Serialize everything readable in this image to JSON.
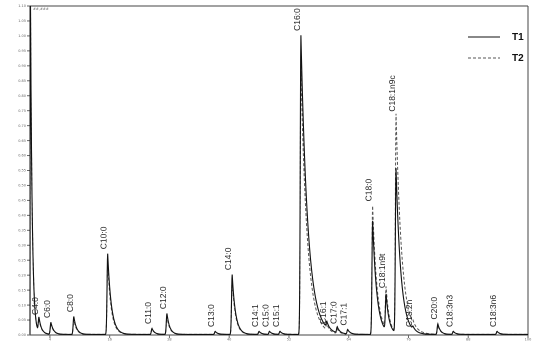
{
  "chart_data": {
    "type": "line",
    "title": "",
    "xlabel": "",
    "ylabel": "",
    "grid": false,
    "legend_position": "top-right",
    "colors": {
      "T1": "#111111",
      "T2": "#555555",
      "axis": "#444444"
    },
    "xlim": [
      0,
      100
    ],
    "ylim": [
      0,
      1.1
    ],
    "y_ticks": [
      0,
      0.05,
      0.1,
      0.15,
      0.2,
      0.25,
      0.3,
      0.35,
      0.4,
      0.45,
      0.5,
      0.55,
      0.6,
      0.65,
      0.7,
      0.75,
      0.8,
      0.85,
      0.9,
      0.95,
      1.0,
      1.05,
      1.1
    ],
    "x_ticks": [
      4,
      16,
      28,
      40,
      52,
      64,
      76,
      88,
      100
    ],
    "y_axis_top_label": "##,###",
    "series": [
      {
        "name": "T1",
        "style": "solid"
      },
      {
        "name": "T2",
        "style": "dashed"
      }
    ],
    "peaks": [
      {
        "label": "C4:0",
        "x": 1.8,
        "t1": 0.05,
        "t2": 0.045
      },
      {
        "label": "C6:0",
        "x": 4.2,
        "t1": 0.04,
        "t2": 0.035
      },
      {
        "label": "C8:0",
        "x": 8.8,
        "t1": 0.06,
        "t2": 0.05
      },
      {
        "label": "C10:0",
        "x": 15.6,
        "t1": 0.27,
        "t2": 0.24
      },
      {
        "label": "C11:0",
        "x": 24.5,
        "t1": 0.02,
        "t2": 0.018
      },
      {
        "label": "C12:0",
        "x": 27.5,
        "t1": 0.07,
        "t2": 0.06
      },
      {
        "label": "C13:0",
        "x": 37.2,
        "t1": 0.01,
        "t2": 0.01
      },
      {
        "label": "C14:0",
        "x": 40.6,
        "t1": 0.2,
        "t2": 0.18
      },
      {
        "label": "C14:1",
        "x": 46.0,
        "t1": 0.01,
        "t2": 0.01
      },
      {
        "label": "C15:0",
        "x": 48.1,
        "t1": 0.01,
        "t2": 0.01
      },
      {
        "label": "C15:1",
        "x": 50.2,
        "t1": 0.01,
        "t2": 0.01
      },
      {
        "label": "C16:0",
        "x": 54.4,
        "t1": 1.0,
        "t2": 0.88
      },
      {
        "label": "C16:1",
        "x": 59.6,
        "t1": 0.02,
        "t2": 0.02
      },
      {
        "label": "C17:0",
        "x": 61.7,
        "t1": 0.02,
        "t2": 0.015
      },
      {
        "label": "C17:1",
        "x": 63.8,
        "t1": 0.015,
        "t2": 0.015
      },
      {
        "label": "C18:0",
        "x": 68.8,
        "t1": 0.38,
        "t2": 0.43
      },
      {
        "label": "C18:1n9t",
        "x": 71.5,
        "t1": 0.12,
        "t2": 0.14
      },
      {
        "label": "C18:1n9c",
        "x": 73.5,
        "t1": 0.55,
        "t2": 0.73
      },
      {
        "label": "C18:2n",
        "x": 76.9,
        "t1": 0.01,
        "t2": 0.01
      },
      {
        "label": "C20:0",
        "x": 81.9,
        "t1": 0.035,
        "t2": 0.03
      },
      {
        "label": "C18:3n3",
        "x": 85.0,
        "t1": 0.01,
        "t2": 0.01
      },
      {
        "label": "C18:3n6",
        "x": 93.8,
        "t1": 0.01,
        "t2": 0.01
      }
    ]
  }
}
